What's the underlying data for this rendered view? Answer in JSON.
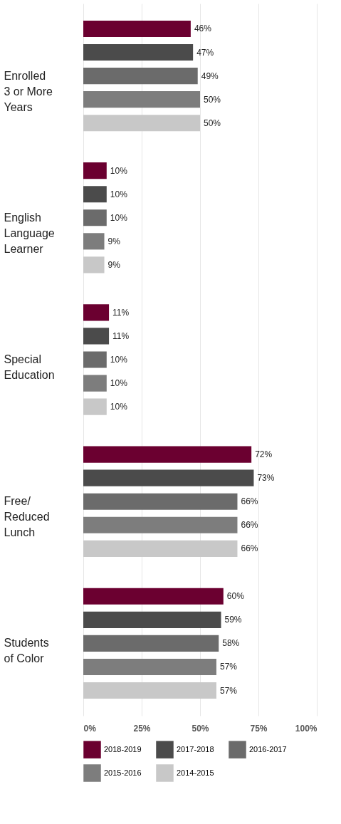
{
  "chart_data": {
    "type": "bar",
    "orientation": "horizontal",
    "categories": [
      "Enrolled\n3 or More\nYears",
      "English\nLanguage\nLearner",
      "Special\nEducation",
      "Free/\nReduced\nLunch",
      "Students\nof Color"
    ],
    "series": [
      {
        "name": "2018-2019",
        "color": "#6b0030",
        "values": [
          46,
          10,
          11,
          72,
          60
        ],
        "value_labels": [
          "46%",
          "10%",
          "11%",
          "72%",
          "60%"
        ]
      },
      {
        "name": "2017-2018",
        "color": "#4b4b4b",
        "values": [
          47,
          10,
          11,
          73,
          59
        ],
        "value_labels": [
          "47%",
          "10%",
          "11%",
          "73%",
          "59%"
        ]
      },
      {
        "name": "2016-2017",
        "color": "#6b6b6b",
        "values": [
          49,
          10,
          10,
          66,
          58
        ],
        "value_labels": [
          "49%",
          "10%",
          "10%",
          "66%",
          "58%"
        ]
      },
      {
        "name": "2015-2016",
        "color": "#7d7d7d",
        "values": [
          50,
          9,
          10,
          66,
          57
        ],
        "value_labels": [
          "50%",
          "9%",
          "10%",
          "66%",
          "57%"
        ]
      },
      {
        "name": "2014-2015",
        "color": "#c8c8c8",
        "values": [
          50,
          9,
          10,
          66,
          57
        ],
        "value_labels": [
          "50%",
          "9%",
          "10%",
          "66%",
          "57%"
        ]
      }
    ],
    "xlim": [
      0,
      100
    ],
    "xticks": [
      {
        "value": 0,
        "label": "0%"
      },
      {
        "value": 25,
        "label": "25%"
      },
      {
        "value": 50,
        "label": "50%"
      },
      {
        "value": 75,
        "label": "75%"
      },
      {
        "value": 100,
        "label": "100%"
      }
    ],
    "grid": "x",
    "legend": "bottom"
  }
}
